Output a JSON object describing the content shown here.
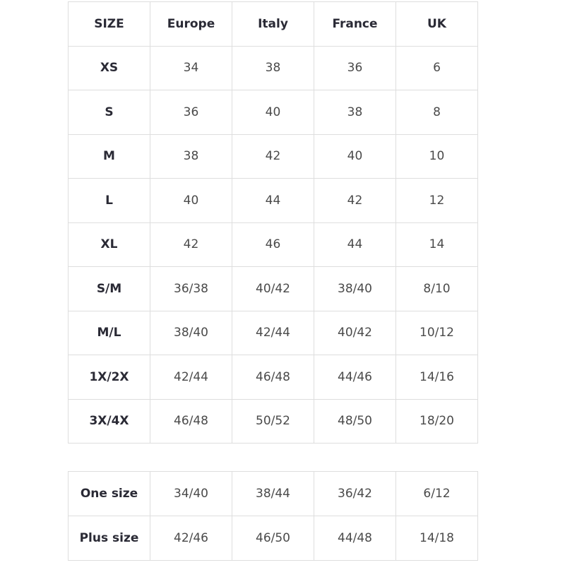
{
  "main_table": {
    "headers": [
      "SIZE",
      "Europe",
      "Italy",
      "France",
      "UK"
    ],
    "rows": [
      [
        "XS",
        "34",
        "38",
        "36",
        "6"
      ],
      [
        "S",
        "36",
        "40",
        "38",
        "8"
      ],
      [
        "M",
        "38",
        "42",
        "40",
        "10"
      ],
      [
        "L",
        "40",
        "44",
        "42",
        "12"
      ],
      [
        "XL",
        "42",
        "46",
        "44",
        "14"
      ],
      [
        "S/M",
        "36/38",
        "40/42",
        "38/40",
        "8/10"
      ],
      [
        "M/L",
        "38/40",
        "42/44",
        "40/42",
        "10/12"
      ],
      [
        "1X/2X",
        "42/44",
        "46/48",
        "44/46",
        "14/16"
      ],
      [
        "3X/4X",
        "46/48",
        "50/52",
        "48/50",
        "18/20"
      ]
    ]
  },
  "extra_table": {
    "rows": [
      [
        "One size",
        "34/40",
        "38/44",
        "36/42",
        "6/12"
      ],
      [
        "Plus size",
        "42/46",
        "46/50",
        "44/48",
        "14/18"
      ]
    ]
  },
  "colors": {
    "border": "#dedede",
    "header_text": "#2a2a35",
    "value_text": "#4a4a4a"
  }
}
